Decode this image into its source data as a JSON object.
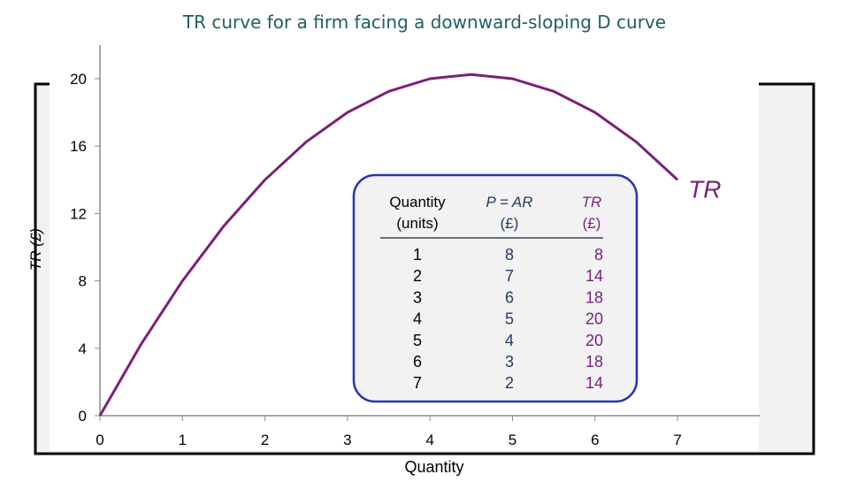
{
  "chart_data": {
    "type": "line",
    "title": "TR curve for a firm facing a downward-sloping D curve",
    "x_label": "Quantity",
    "y_label": "TR (£)",
    "x": [
      0,
      0.5,
      1,
      1.5,
      2,
      2.5,
      3,
      3.5,
      4,
      4.5,
      5,
      5.5,
      6,
      6.5,
      7
    ],
    "series": [
      {
        "name": "TR",
        "color": "#7a1f7a",
        "values": [
          0,
          4.25,
          8,
          11.25,
          14,
          16.25,
          18,
          19.25,
          20,
          20.25,
          20,
          19.25,
          18,
          16.25,
          14
        ]
      }
    ],
    "xlim": [
      0,
      8
    ],
    "xticks": [
      0,
      1,
      2,
      3,
      4,
      5,
      6,
      7
    ],
    "ylim": [
      0,
      22
    ],
    "yticks": [
      0,
      4,
      8,
      12,
      16,
      20
    ],
    "table": {
      "headers": [
        [
          "Quantity",
          "(units)"
        ],
        [
          "P = AR",
          "(£)"
        ],
        [
          "TR",
          "(£)"
        ]
      ],
      "colors": [
        "#000000",
        "#1f3a6e",
        "#7a1f7a"
      ],
      "rows": [
        [
          1,
          8,
          8
        ],
        [
          2,
          7,
          14
        ],
        [
          3,
          6,
          18
        ],
        [
          4,
          5,
          20
        ],
        [
          5,
          4,
          20
        ],
        [
          6,
          3,
          18
        ],
        [
          7,
          2,
          14
        ]
      ]
    }
  }
}
